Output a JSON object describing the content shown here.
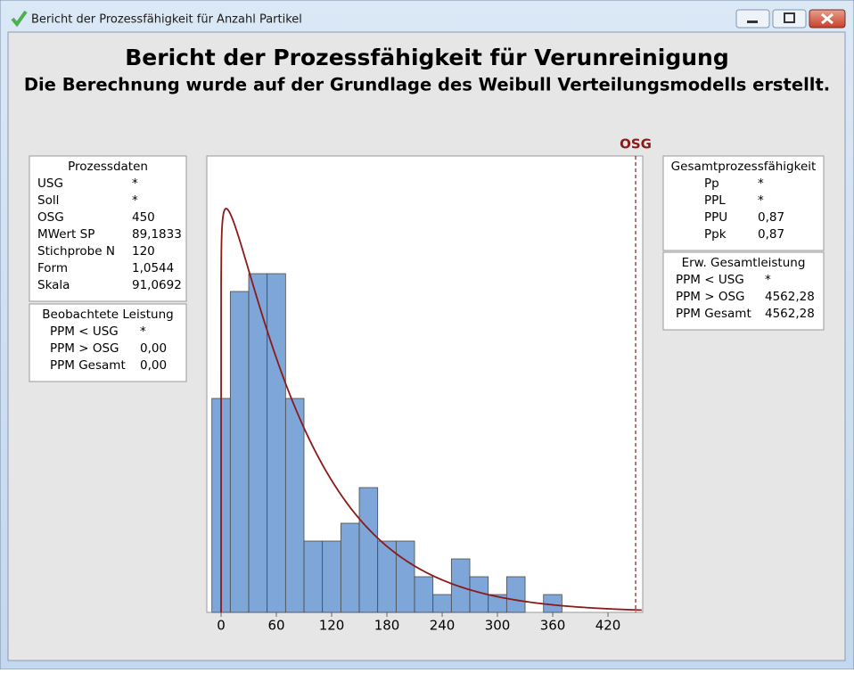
{
  "window": {
    "title": "Bericht der Prozessfähigkeit für Anzahl Partikel"
  },
  "report": {
    "title": "Bericht der Prozessfähigkeit für Verunreinigung",
    "subtitle": "Die Berechnung wurde auf der Grundlage des Weibull Verteilungsmodells erstellt."
  },
  "tables": [
    {
      "title": "Prozessdaten",
      "rows": [
        [
          "USG",
          "*"
        ],
        [
          "Soll",
          "*"
        ],
        [
          "OSG",
          "450"
        ],
        [
          "MWert SP",
          "89,1833"
        ],
        [
          "Stichprobe N",
          "120"
        ],
        [
          "Form",
          "1,0544"
        ],
        [
          "Skala",
          "91,0692"
        ]
      ]
    },
    {
      "title": "Beobachtete Leistung",
      "rows": [
        [
          "PPM < USG",
          "*"
        ],
        [
          "PPM > OSG",
          "0,00"
        ],
        [
          "PPM Gesamt",
          "0,00"
        ]
      ]
    },
    {
      "title": "Gesamtprozessfähigkeit",
      "rows": [
        [
          "Pp",
          "*"
        ],
        [
          "PPL",
          "*"
        ],
        [
          "PPU",
          "0,87"
        ],
        [
          "Ppk",
          "0,87"
        ]
      ]
    },
    {
      "title": "Erw. Gesamtleistung",
      "rows": [
        [
          "PPM < USG",
          "*"
        ],
        [
          "PPM > OSG",
          "4562,28"
        ],
        [
          "PPM Gesamt",
          "4562,28"
        ]
      ]
    }
  ],
  "chart_data": {
    "type": "histogram",
    "bins": [
      -10,
      10,
      30,
      50,
      70,
      90,
      110,
      130,
      150,
      170,
      190,
      210,
      230,
      250,
      270,
      290,
      310,
      330,
      350,
      370
    ],
    "values": [
      12,
      18,
      19,
      19,
      12,
      4,
      4,
      5,
      7,
      4,
      4,
      2,
      1,
      3,
      2,
      1,
      2,
      0,
      1
    ],
    "color": "#7ea6d8",
    "curve_color": "#8b1a1a",
    "xlim": [
      -15.5,
      457.7
    ],
    "ylim": [
      0,
      25.6
    ],
    "xticks": [
      0,
      60,
      120,
      180,
      240,
      300,
      360,
      420
    ],
    "spec_lines": [
      {
        "label": "OSG",
        "value": 450,
        "color": "#8b1a1a"
      }
    ]
  }
}
